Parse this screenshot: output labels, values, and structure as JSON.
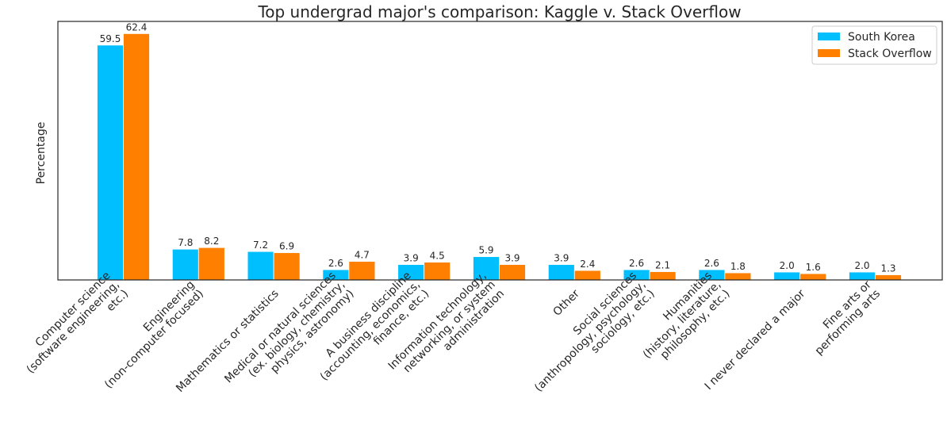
{
  "chart_data": {
    "type": "bar",
    "title": "Top undergrad major's comparison: Kaggle v. Stack Overflow",
    "xlabel": "",
    "ylabel": "Percentage",
    "ylim": [
      0,
      65.5
    ],
    "grid": false,
    "legend_position": "top-right",
    "categories": [
      "Computer science (software engineering, etc.)",
      "Engineering (non-computer focused)",
      "Mathematics or statistics",
      "Medical or natural sciences (ex. biology, chemistry, physics, astronomy)",
      "A business discipline (accounting, economics, finance, etc.)",
      "Information technology, networking, or system administration",
      "Other",
      "Social sciences (anthropology, psychology, sociology, etc.)",
      "Humanities (history, literature, philosophy, etc.)",
      "I never declared a major",
      "Fine arts or performing arts"
    ],
    "category_label_lines": [
      [
        "Computer science",
        "(software engineering,",
        "etc.)"
      ],
      [
        "Engineering",
        "(non-computer focused)"
      ],
      [
        "Mathematics or statistics"
      ],
      [
        "Medical or natural sciences",
        "(ex. biology, chemistry,",
        "physics, astronomy)"
      ],
      [
        "A business discipline",
        "(accounting, economics,",
        "finance, etc.)"
      ],
      [
        "Information technology,",
        "networking, or system",
        "administration"
      ],
      [
        "Other"
      ],
      [
        "Social sciences",
        "(anthropology, psychology,",
        "sociology, etc.)"
      ],
      [
        "Humanities",
        "(history, literature,",
        "philosophy, etc.)"
      ],
      [
        "I never declared a major"
      ],
      [
        "Fine arts or",
        "performing arts"
      ]
    ],
    "series": [
      {
        "name": "South Korea",
        "color": "#00bfff",
        "values": [
          59.5,
          7.8,
          7.2,
          2.6,
          3.9,
          5.9,
          3.9,
          2.6,
          2.6,
          2.0,
          2.0
        ],
        "labels": [
          "59.5",
          "7.8",
          "7.2",
          "2.6",
          "3.9",
          "5.9",
          "3.9",
          "2.6",
          "2.6",
          "2.0",
          "2.0"
        ]
      },
      {
        "name": "Stack Overflow",
        "color": "#ff7f00",
        "values": [
          62.4,
          8.2,
          6.9,
          4.7,
          4.5,
          3.9,
          2.4,
          2.1,
          1.8,
          1.6,
          1.3
        ],
        "labels": [
          "62.4",
          "8.2",
          "6.9",
          "4.7",
          "4.5",
          "3.9",
          "2.4",
          "2.1",
          "1.8",
          "1.6",
          "1.3"
        ]
      }
    ]
  }
}
